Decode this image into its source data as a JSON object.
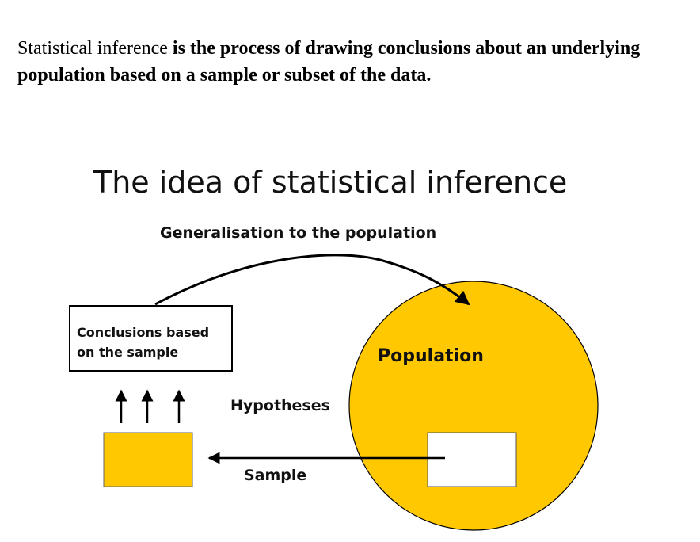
{
  "intro": {
    "lead": "Statistical inference",
    "rest": " is the process of drawing conclusions about an underlying population based on a sample or subset of the data."
  },
  "diagram": {
    "title": "The idea of statistical inference",
    "generalisation_label": "Generalisation to the population",
    "conclusions_line1": "Conclusions based",
    "conclusions_line2": "on the sample",
    "population_label": "Population",
    "hypotheses_label": "Hypotheses",
    "sample_label": "Sample",
    "colors": {
      "population_fill": "#ffc800",
      "sample_fill": "#ffc800",
      "stroke": "#000000"
    }
  }
}
